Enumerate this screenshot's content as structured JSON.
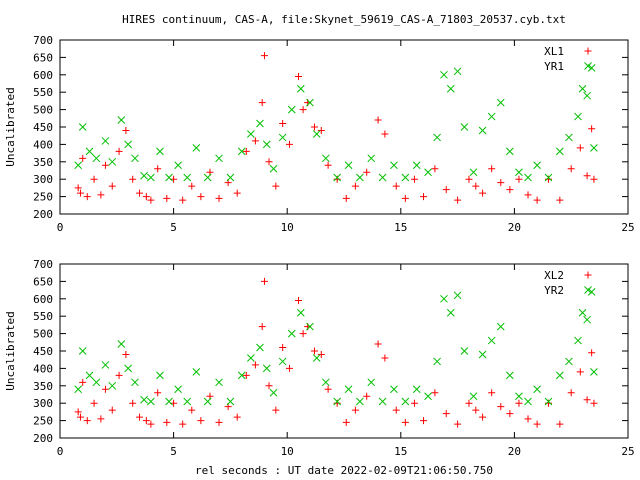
{
  "figure": {
    "title": "HIRES continuum, CAS-A, file:Skynet_59619_CAS-A_71803_20537.cyb.txt",
    "xlabel": "rel seconds : UT date 2022-02-09T21:06:50.750"
  },
  "colors": {
    "series_a": "#ff0000",
    "series_b": "#00c000",
    "axis": "#000000",
    "background": "#ffffff"
  },
  "chart_data": [
    {
      "type": "scatter",
      "ylabel": "Uncalibrated",
      "xlim": [
        0,
        25
      ],
      "ylim": [
        200,
        700
      ],
      "xticks": [
        0,
        5,
        10,
        15,
        20,
        25
      ],
      "yticks": [
        200,
        250,
        300,
        350,
        400,
        450,
        500,
        550,
        600,
        650,
        700
      ],
      "grid": false,
      "legend_position": "top-right",
      "series": [
        {
          "name": "XL1",
          "marker": "plus",
          "points": [
            [
              0.8,
              275
            ],
            [
              0.9,
              260
            ],
            [
              1.0,
              360
            ],
            [
              1.2,
              250
            ],
            [
              1.5,
              300
            ],
            [
              1.8,
              255
            ],
            [
              2.0,
              340
            ],
            [
              2.3,
              280
            ],
            [
              2.6,
              380
            ],
            [
              2.9,
              440
            ],
            [
              3.2,
              300
            ],
            [
              3.5,
              260
            ],
            [
              3.8,
              250
            ],
            [
              4.0,
              240
            ],
            [
              4.3,
              330
            ],
            [
              4.7,
              245
            ],
            [
              5.0,
              300
            ],
            [
              5.4,
              240
            ],
            [
              5.8,
              280
            ],
            [
              6.2,
              250
            ],
            [
              6.6,
              320
            ],
            [
              7.0,
              245
            ],
            [
              7.4,
              290
            ],
            [
              7.8,
              260
            ],
            [
              8.2,
              380
            ],
            [
              8.6,
              410
            ],
            [
              8.9,
              520
            ],
            [
              9.0,
              655
            ],
            [
              9.2,
              350
            ],
            [
              9.5,
              280
            ],
            [
              9.8,
              460
            ],
            [
              10.1,
              400
            ],
            [
              10.5,
              595
            ],
            [
              10.7,
              500
            ],
            [
              10.9,
              520
            ],
            [
              11.2,
              450
            ],
            [
              11.5,
              440
            ],
            [
              11.8,
              340
            ],
            [
              12.2,
              300
            ],
            [
              12.6,
              245
            ],
            [
              13.0,
              280
            ],
            [
              13.5,
              320
            ],
            [
              14.0,
              470
            ],
            [
              14.3,
              430
            ],
            [
              14.8,
              280
            ],
            [
              15.2,
              245
            ],
            [
              15.6,
              300
            ],
            [
              16.0,
              250
            ],
            [
              16.5,
              330
            ],
            [
              17.0,
              270
            ],
            [
              17.5,
              240
            ],
            [
              18.0,
              300
            ],
            [
              18.3,
              280
            ],
            [
              18.6,
              260
            ],
            [
              19.0,
              330
            ],
            [
              19.4,
              290
            ],
            [
              19.8,
              270
            ],
            [
              20.2,
              300
            ],
            [
              20.6,
              255
            ],
            [
              21.0,
              240
            ],
            [
              21.5,
              300
            ],
            [
              22.0,
              240
            ],
            [
              22.5,
              330
            ],
            [
              22.9,
              390
            ],
            [
              23.2,
              310
            ],
            [
              23.4,
              445
            ],
            [
              23.5,
              300
            ]
          ]
        },
        {
          "name": "YR1",
          "marker": "cross",
          "points": [
            [
              0.8,
              340
            ],
            [
              1.0,
              450
            ],
            [
              1.3,
              380
            ],
            [
              1.6,
              360
            ],
            [
              2.0,
              410
            ],
            [
              2.3,
              350
            ],
            [
              2.7,
              470
            ],
            [
              3.0,
              400
            ],
            [
              3.3,
              360
            ],
            [
              3.7,
              310
            ],
            [
              4.0,
              305
            ],
            [
              4.4,
              380
            ],
            [
              4.8,
              305
            ],
            [
              5.2,
              340
            ],
            [
              5.6,
              305
            ],
            [
              6.0,
              390
            ],
            [
              6.5,
              305
            ],
            [
              7.0,
              360
            ],
            [
              7.5,
              305
            ],
            [
              8.0,
              380
            ],
            [
              8.4,
              430
            ],
            [
              8.8,
              460
            ],
            [
              9.1,
              400
            ],
            [
              9.4,
              330
            ],
            [
              9.8,
              420
            ],
            [
              10.2,
              500
            ],
            [
              10.6,
              560
            ],
            [
              11.0,
              520
            ],
            [
              11.3,
              430
            ],
            [
              11.7,
              360
            ],
            [
              12.2,
              305
            ],
            [
              12.7,
              340
            ],
            [
              13.2,
              305
            ],
            [
              13.7,
              360
            ],
            [
              14.2,
              305
            ],
            [
              14.7,
              340
            ],
            [
              15.2,
              305
            ],
            [
              15.7,
              340
            ],
            [
              16.2,
              320
            ],
            [
              16.6,
              420
            ],
            [
              16.9,
              600
            ],
            [
              17.2,
              560
            ],
            [
              17.5,
              610
            ],
            [
              17.8,
              450
            ],
            [
              18.2,
              320
            ],
            [
              18.6,
              440
            ],
            [
              19.0,
              480
            ],
            [
              19.4,
              520
            ],
            [
              19.8,
              380
            ],
            [
              20.2,
              320
            ],
            [
              20.6,
              305
            ],
            [
              21.0,
              340
            ],
            [
              21.5,
              305
            ],
            [
              22.0,
              380
            ],
            [
              22.4,
              420
            ],
            [
              22.8,
              480
            ],
            [
              23.0,
              560
            ],
            [
              23.2,
              540
            ],
            [
              23.4,
              620
            ],
            [
              23.5,
              390
            ]
          ]
        }
      ]
    },
    {
      "type": "scatter",
      "ylabel": "Uncalibrated",
      "xlim": [
        0,
        25
      ],
      "ylim": [
        200,
        700
      ],
      "xticks": [
        0,
        5,
        10,
        15,
        20,
        25
      ],
      "yticks": [
        200,
        250,
        300,
        350,
        400,
        450,
        500,
        550,
        600,
        650,
        700
      ],
      "grid": false,
      "legend_position": "top-right",
      "series": [
        {
          "name": "XL2",
          "marker": "plus",
          "points": [
            [
              0.8,
              275
            ],
            [
              0.9,
              260
            ],
            [
              1.0,
              360
            ],
            [
              1.2,
              250
            ],
            [
              1.5,
              300
            ],
            [
              1.8,
              255
            ],
            [
              2.0,
              340
            ],
            [
              2.3,
              280
            ],
            [
              2.6,
              380
            ],
            [
              2.9,
              440
            ],
            [
              3.2,
              300
            ],
            [
              3.5,
              260
            ],
            [
              3.8,
              250
            ],
            [
              4.0,
              240
            ],
            [
              4.3,
              330
            ],
            [
              4.7,
              245
            ],
            [
              5.0,
              300
            ],
            [
              5.4,
              240
            ],
            [
              5.8,
              280
            ],
            [
              6.2,
              250
            ],
            [
              6.6,
              320
            ],
            [
              7.0,
              245
            ],
            [
              7.4,
              290
            ],
            [
              7.8,
              260
            ],
            [
              8.2,
              380
            ],
            [
              8.6,
              410
            ],
            [
              8.9,
              520
            ],
            [
              9.0,
              650
            ],
            [
              9.2,
              350
            ],
            [
              9.5,
              280
            ],
            [
              9.8,
              460
            ],
            [
              10.1,
              400
            ],
            [
              10.5,
              595
            ],
            [
              10.7,
              500
            ],
            [
              10.9,
              520
            ],
            [
              11.2,
              450
            ],
            [
              11.5,
              440
            ],
            [
              11.8,
              340
            ],
            [
              12.2,
              300
            ],
            [
              12.6,
              245
            ],
            [
              13.0,
              280
            ],
            [
              13.5,
              320
            ],
            [
              14.0,
              470
            ],
            [
              14.3,
              430
            ],
            [
              14.8,
              280
            ],
            [
              15.2,
              245
            ],
            [
              15.6,
              300
            ],
            [
              16.0,
              250
            ],
            [
              16.5,
              330
            ],
            [
              17.0,
              270
            ],
            [
              17.5,
              240
            ],
            [
              18.0,
              300
            ],
            [
              18.3,
              280
            ],
            [
              18.6,
              260
            ],
            [
              19.0,
              330
            ],
            [
              19.4,
              290
            ],
            [
              19.8,
              270
            ],
            [
              20.2,
              300
            ],
            [
              20.6,
              255
            ],
            [
              21.0,
              240
            ],
            [
              21.5,
              300
            ],
            [
              22.0,
              240
            ],
            [
              22.5,
              330
            ],
            [
              22.9,
              390
            ],
            [
              23.2,
              310
            ],
            [
              23.4,
              445
            ],
            [
              23.5,
              300
            ]
          ]
        },
        {
          "name": "YR2",
          "marker": "cross",
          "points": [
            [
              0.8,
              340
            ],
            [
              1.0,
              450
            ],
            [
              1.3,
              380
            ],
            [
              1.6,
              360
            ],
            [
              2.0,
              410
            ],
            [
              2.3,
              350
            ],
            [
              2.7,
              470
            ],
            [
              3.0,
              400
            ],
            [
              3.3,
              360
            ],
            [
              3.7,
              310
            ],
            [
              4.0,
              305
            ],
            [
              4.4,
              380
            ],
            [
              4.8,
              305
            ],
            [
              5.2,
              340
            ],
            [
              5.6,
              305
            ],
            [
              6.0,
              390
            ],
            [
              6.5,
              305
            ],
            [
              7.0,
              360
            ],
            [
              7.5,
              305
            ],
            [
              8.0,
              380
            ],
            [
              8.4,
              430
            ],
            [
              8.8,
              460
            ],
            [
              9.1,
              400
            ],
            [
              9.4,
              330
            ],
            [
              9.8,
              420
            ],
            [
              10.2,
              500
            ],
            [
              10.6,
              560
            ],
            [
              11.0,
              520
            ],
            [
              11.3,
              430
            ],
            [
              11.7,
              360
            ],
            [
              12.2,
              305
            ],
            [
              12.7,
              340
            ],
            [
              13.2,
              305
            ],
            [
              13.7,
              360
            ],
            [
              14.2,
              305
            ],
            [
              14.7,
              340
            ],
            [
              15.2,
              305
            ],
            [
              15.7,
              340
            ],
            [
              16.2,
              320
            ],
            [
              16.6,
              420
            ],
            [
              16.9,
              600
            ],
            [
              17.2,
              560
            ],
            [
              17.5,
              610
            ],
            [
              17.8,
              450
            ],
            [
              18.2,
              320
            ],
            [
              18.6,
              440
            ],
            [
              19.0,
              480
            ],
            [
              19.4,
              520
            ],
            [
              19.8,
              380
            ],
            [
              20.2,
              320
            ],
            [
              20.6,
              305
            ],
            [
              21.0,
              340
            ],
            [
              21.5,
              305
            ],
            [
              22.0,
              380
            ],
            [
              22.4,
              420
            ],
            [
              22.8,
              480
            ],
            [
              23.0,
              560
            ],
            [
              23.2,
              540
            ],
            [
              23.4,
              620
            ],
            [
              23.5,
              390
            ]
          ]
        }
      ]
    }
  ]
}
